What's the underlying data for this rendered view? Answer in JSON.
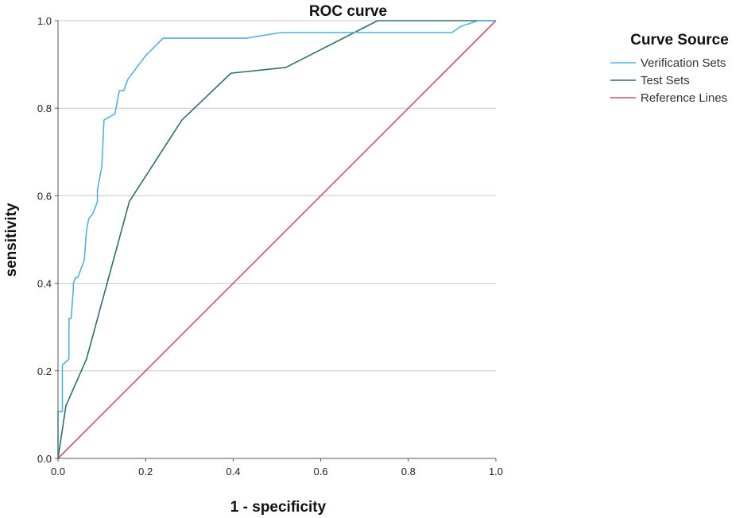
{
  "chart_data": {
    "type": "line",
    "title": "ROC curve",
    "xlabel": "1 - specificity",
    "ylabel": "sensitivity",
    "xlim": [
      0,
      1
    ],
    "ylim": [
      0,
      1
    ],
    "x_ticks": [
      "0.0",
      "0.2",
      "0.4",
      "0.6",
      "0.8",
      "1.0"
    ],
    "y_ticks": [
      "0.0",
      "0.2",
      "0.4",
      "0.6",
      "0.8",
      "1.0"
    ],
    "grid": "horizontal",
    "legend": {
      "title": "Curve Source",
      "position": "right"
    },
    "series": [
      {
        "name": "Verification Sets",
        "color": "#4fb3e0",
        "x": [
          0,
          0,
          0.01,
          0.01,
          0.025,
          0.025,
          0.03,
          0.035,
          0.035,
          0.04,
          0.045,
          0.055,
          0.06,
          0.065,
          0.07,
          0.08,
          0.09,
          0.09,
          0.1,
          0.105,
          0.13,
          0.14,
          0.15,
          0.16,
          0.17,
          0.2,
          0.24,
          0.43,
          0.51,
          0.9,
          0.92,
          0.96,
          1.0
        ],
        "y": [
          0,
          0.107,
          0.107,
          0.213,
          0.227,
          0.32,
          0.32,
          0.387,
          0.4,
          0.413,
          0.413,
          0.44,
          0.453,
          0.52,
          0.547,
          0.56,
          0.587,
          0.613,
          0.667,
          0.773,
          0.787,
          0.84,
          0.84,
          0.867,
          0.88,
          0.92,
          0.96,
          0.96,
          0.973,
          0.973,
          0.987,
          1.0,
          1.0
        ]
      },
      {
        "name": "Test Sets",
        "color": "#2e6e6e",
        "x": [
          0,
          0.018,
          0.065,
          0.163,
          0.283,
          0.395,
          0.52,
          0.73,
          1.0
        ],
        "y": [
          0,
          0.12,
          0.227,
          0.587,
          0.773,
          0.88,
          0.893,
          1.0,
          1.0
        ]
      },
      {
        "name": "Reference Lines",
        "color": "#c8546e",
        "x": [
          0,
          1
        ],
        "y": [
          0,
          1
        ]
      }
    ]
  },
  "colors": {
    "grid": "#c8c8c8",
    "axis": "#555555"
  }
}
